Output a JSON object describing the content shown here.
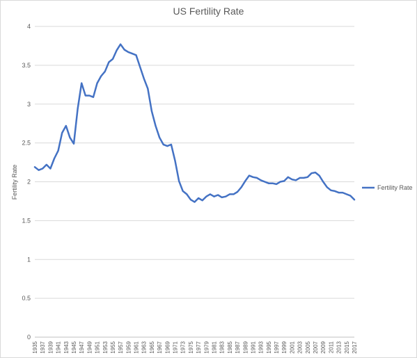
{
  "chart_data": {
    "type": "line",
    "title": "US Fertility Rate",
    "xlabel": "",
    "ylabel": "Fertility Rate",
    "ylim": [
      0,
      4
    ],
    "yticks": [
      "0",
      "0.5",
      "1",
      "1.5",
      "2",
      "2.5",
      "3",
      "3.5",
      "4"
    ],
    "grid": true,
    "legend_position": "right",
    "series_color": "#4472c4",
    "x": [
      1935,
      1936,
      1937,
      1938,
      1939,
      1940,
      1941,
      1942,
      1943,
      1944,
      1945,
      1946,
      1947,
      1948,
      1949,
      1950,
      1951,
      1952,
      1953,
      1954,
      1955,
      1956,
      1957,
      1958,
      1959,
      1960,
      1961,
      1962,
      1963,
      1964,
      1965,
      1966,
      1967,
      1968,
      1969,
      1970,
      1971,
      1972,
      1973,
      1974,
      1975,
      1976,
      1977,
      1978,
      1979,
      1980,
      1981,
      1982,
      1983,
      1984,
      1985,
      1986,
      1987,
      1988,
      1989,
      1990,
      1991,
      1992,
      1993,
      1994,
      1995,
      1996,
      1997,
      1998,
      1999,
      2000,
      2001,
      2002,
      2003,
      2004,
      2005,
      2006,
      2007,
      2008,
      2009,
      2010,
      2011,
      2012,
      2013,
      2014,
      2015,
      2016,
      2017
    ],
    "xtick_labels": [
      "1935",
      "1937",
      "1939",
      "1941",
      "1943",
      "1945",
      "1947",
      "1949",
      "1951",
      "1953",
      "1955",
      "1957",
      "1959",
      "1961",
      "1963",
      "1965",
      "1967",
      "1969",
      "1971",
      "1973",
      "1975",
      "1977",
      "1979",
      "1981",
      "1983",
      "1985",
      "1987",
      "1989",
      "1991",
      "1993",
      "1995",
      "1997",
      "1999",
      "2001",
      "2003",
      "2005",
      "2007",
      "2009",
      "2011",
      "2013",
      "2015",
      "2017"
    ],
    "series": [
      {
        "name": "Fertility Rate",
        "values": [
          2.19,
          2.15,
          2.17,
          2.22,
          2.17,
          2.3,
          2.4,
          2.63,
          2.72,
          2.57,
          2.49,
          2.94,
          3.27,
          3.11,
          3.11,
          3.09,
          3.27,
          3.36,
          3.42,
          3.54,
          3.58,
          3.69,
          3.77,
          3.7,
          3.67,
          3.65,
          3.63,
          3.48,
          3.33,
          3.2,
          2.91,
          2.72,
          2.57,
          2.48,
          2.46,
          2.48,
          2.27,
          2.01,
          1.88,
          1.84,
          1.77,
          1.74,
          1.79,
          1.76,
          1.81,
          1.84,
          1.81,
          1.83,
          1.8,
          1.81,
          1.84,
          1.84,
          1.87,
          1.93,
          2.01,
          2.08,
          2.06,
          2.05,
          2.02,
          2.0,
          1.98,
          1.98,
          1.97,
          2.0,
          2.01,
          2.06,
          2.03,
          2.02,
          2.05,
          2.05,
          2.06,
          2.11,
          2.12,
          2.08,
          2.0,
          1.93,
          1.89,
          1.88,
          1.86,
          1.86,
          1.84,
          1.82,
          1.77
        ]
      }
    ]
  }
}
